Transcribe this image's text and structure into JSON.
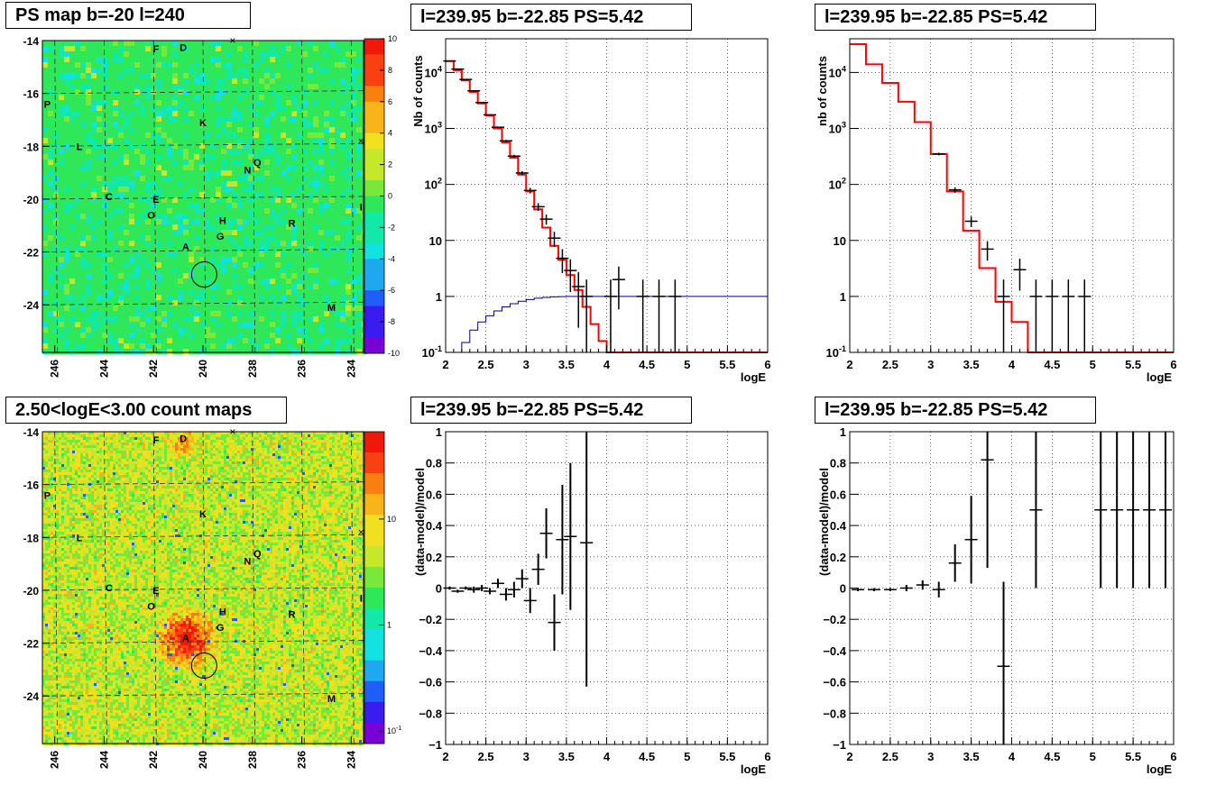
{
  "panel_titles": {
    "map_top": "PS map b=-20 l=240",
    "map_bottom": "2.50<logE<3.00 count maps",
    "spec_mid": "l=239.95 b=-22.85 PS=5.42",
    "spec_right": "l=239.95 b=-22.85 PS=5.42",
    "resid_mid": "l=239.95 b=-22.85 PS=5.42",
    "resid_right": "l=239.95 b=-22.85 PS=5.42"
  },
  "maps": {
    "x_ticks": [
      "246",
      "244",
      "242",
      "240",
      "238",
      "236",
      "234"
    ],
    "y_ticks": [
      "-14",
      "-16",
      "-18",
      "-20",
      "-22",
      "-24"
    ],
    "x_range": [
      246.5,
      233.5
    ],
    "y_range": [
      -14,
      -25.8
    ],
    "palette": [
      "#7a00d8",
      "#3a1cf0",
      "#1f5ef8",
      "#1ea8f0",
      "#12e2e2",
      "#12e8a8",
      "#2fe85a",
      "#7ae83a",
      "#c6e82a",
      "#f0e020",
      "#f8b418",
      "#f88010",
      "#f84010",
      "#f01808"
    ],
    "ps_colorbar_ticks": [
      "10",
      "8",
      "6",
      "4",
      "2",
      "0",
      "-2",
      "-4",
      "-6",
      "-8",
      "-10"
    ],
    "count_colorbar_ticks": [
      "10",
      "1",
      "10-1"
    ],
    "sources": [
      {
        "label": "F",
        "l": 241.9,
        "b": -14.3
      },
      {
        "label": "D",
        "l": 240.8,
        "b": -14.25
      },
      {
        "label": "P",
        "l": 246.3,
        "b": -16.4
      },
      {
        "label": "K",
        "l": 240.0,
        "b": -17.1
      },
      {
        "label": "L",
        "l": 245.0,
        "b": -18.0
      },
      {
        "label": "Q",
        "l": 237.8,
        "b": -18.6
      },
      {
        "label": "N",
        "l": 238.2,
        "b": -18.9
      },
      {
        "label": "C",
        "l": 243.8,
        "b": -19.9
      },
      {
        "label": "E",
        "l": 241.9,
        "b": -20.0
      },
      {
        "label": "O",
        "l": 242.1,
        "b": -20.6
      },
      {
        "label": "I",
        "l": 233.6,
        "b": -20.3
      },
      {
        "label": "H",
        "l": 239.2,
        "b": -20.8
      },
      {
        "label": "R",
        "l": 236.4,
        "b": -20.9
      },
      {
        "label": "G",
        "l": 239.3,
        "b": -21.4
      },
      {
        "label": "A",
        "l": 240.7,
        "b": -21.8
      },
      {
        "label": "M",
        "l": 234.8,
        "b": -24.1
      }
    ],
    "circle": {
      "l": 239.95,
      "b": -22.85
    },
    "crosses": [
      {
        "l": 238.8,
        "b": -14.0
      },
      {
        "l": 233.6,
        "b": -17.8
      }
    ]
  },
  "spectra": {
    "xlabel": "logE",
    "x_ticks": [
      "2",
      "2.5",
      "3",
      "3.5",
      "4",
      "4.5",
      "5",
      "5.5",
      "6"
    ],
    "y_tick_labels": [
      "10-1",
      "1",
      "10",
      "102",
      "103",
      "104"
    ]
  },
  "residuals": {
    "xlabel": "logE",
    "ylabel": "(data-model)/model",
    "x_ticks": [
      "2",
      "2.5",
      "3",
      "3.5",
      "4",
      "4.5",
      "5",
      "5.5",
      "6"
    ],
    "y_ticks": [
      "1",
      "0.8",
      "0.6",
      "0.4",
      "0.2",
      "0",
      "-0.2",
      "-0.4",
      "-0.6",
      "-0.8",
      "-1"
    ]
  },
  "chart_data": [
    {
      "type": "heatmap",
      "title": "PS map b=-20 l=240",
      "x_ticks": [
        246,
        244,
        242,
        240,
        238,
        236,
        234
      ],
      "y_ticks": [
        -14,
        -16,
        -18,
        -20,
        -22,
        -24
      ],
      "colorbar": [
        -10,
        10
      ]
    },
    {
      "type": "line",
      "title": "l=239.95 b=-22.85 PS=5.42",
      "xlabel": "logE",
      "ylabel": "Nb of counts",
      "xlim": [
        2,
        6
      ],
      "ylim": [
        0.1,
        40000
      ],
      "yscale": "log",
      "grid": true,
      "series": [
        {
          "style": "step",
          "color": "#ff0000",
          "x": [
            2.0,
            2.1,
            2.2,
            2.3,
            2.4,
            2.5,
            2.6,
            2.7,
            2.8,
            2.9,
            3.0,
            3.1,
            3.2,
            3.3,
            3.4,
            3.5,
            3.6,
            3.7,
            3.8,
            3.9,
            4.0,
            4.1,
            4.2,
            4.3,
            6.0
          ],
          "values": [
            16000,
            11000,
            7200,
            4500,
            2800,
            1700,
            1000,
            560,
            300,
            150,
            75,
            36,
            17,
            8,
            4.5,
            2.4,
            1.3,
            0.65,
            0.32,
            0.16,
            0.1,
            0.1,
            0.1,
            0.1,
            0.1
          ]
        },
        {
          "style": "step",
          "color": "#000080",
          "x": [
            2.0,
            2.1,
            2.2,
            2.3,
            2.4,
            2.5,
            2.6,
            2.7,
            2.8,
            2.9,
            3.0,
            3.1,
            3.2,
            3.3,
            3.4,
            3.5,
            3.6,
            6.0
          ],
          "values": [
            0.1,
            0.1,
            0.15,
            0.25,
            0.35,
            0.45,
            0.55,
            0.65,
            0.74,
            0.82,
            0.88,
            0.93,
            0.96,
            0.98,
            0.99,
            1,
            1,
            1
          ]
        },
        {
          "style": "errorbar",
          "color": "#000000",
          "x": [
            2.05,
            2.15,
            2.25,
            2.35,
            2.45,
            2.55,
            2.65,
            2.75,
            2.85,
            2.95,
            3.05,
            3.15,
            3.25,
            3.35,
            3.45,
            3.55,
            3.65,
            3.75,
            4.05,
            4.15,
            4.45,
            4.65,
            4.85
          ],
          "values": [
            16000,
            11500,
            7500,
            4700,
            2900,
            1750,
            1050,
            600,
            320,
            160,
            78,
            40,
            24,
            11,
            4.8,
            2.9,
            1.5,
            1.0,
            1,
            2,
            1,
            1,
            1
          ]
        }
      ]
    },
    {
      "type": "line",
      "title": "l=239.95 b=-22.85 PS=5.42",
      "xlabel": "logE",
      "ylabel": "nb of counts",
      "xlim": [
        2,
        6
      ],
      "ylim": [
        0.1,
        40000
      ],
      "yscale": "log",
      "grid": true,
      "series": [
        {
          "style": "step",
          "color": "#ff0000",
          "x": [
            2.0,
            2.2,
            2.4,
            2.6,
            2.8,
            3.0,
            3.2,
            3.4,
            3.6,
            3.8,
            4.0,
            4.2,
            6.0
          ],
          "values": [
            32000,
            14000,
            6500,
            3000,
            1300,
            350,
            75,
            15,
            3.2,
            0.8,
            0.35,
            0.1,
            0.1
          ]
        },
        {
          "style": "errorbar",
          "color": "#000000",
          "x": [
            3.1,
            3.3,
            3.5,
            3.7,
            3.9,
            4.1,
            4.3,
            4.5,
            4.7,
            4.9
          ],
          "values": [
            350,
            80,
            22,
            7,
            1,
            3,
            1,
            1,
            1,
            1
          ]
        }
      ]
    },
    {
      "type": "heatmap",
      "title": "2.50<logE<3.00 count maps",
      "x_ticks": [
        246,
        244,
        242,
        240,
        238,
        236,
        234
      ],
      "y_ticks": [
        -14,
        -16,
        -18,
        -20,
        -22,
        -24
      ],
      "colorbar_scale": "log"
    },
    {
      "type": "scatter",
      "title": "l=239.95 b=-22.85 PS=5.42",
      "xlabel": "logE",
      "ylabel": "(data-model)/model",
      "xlim": [
        2,
        6
      ],
      "ylim": [
        -1,
        1
      ],
      "grid": true,
      "x": [
        2.05,
        2.15,
        2.25,
        2.35,
        2.45,
        2.55,
        2.65,
        2.75,
        2.85,
        2.95,
        3.05,
        3.15,
        3.25,
        3.35,
        3.45,
        3.55,
        3.75
      ],
      "y": [
        0.0,
        -0.02,
        0.0,
        -0.01,
        0.0,
        -0.02,
        0.03,
        -0.04,
        -0.01,
        0.06,
        -0.08,
        0.12,
        0.35,
        -0.22,
        0.31,
        0.33,
        0.29
      ],
      "yerr": [
        0.01,
        0.01,
        0.01,
        0.02,
        0.02,
        0.02,
        0.03,
        0.04,
        0.05,
        0.06,
        0.08,
        0.1,
        0.16,
        0.18,
        0.35,
        0.47,
        0.92
      ]
    },
    {
      "type": "scatter",
      "title": "l=239.95 b=-22.85 PS=5.42",
      "xlabel": "logE",
      "ylabel": "(data-model)/model",
      "xlim": [
        2,
        6
      ],
      "ylim": [
        -1,
        1
      ],
      "grid": true,
      "x": [
        2.1,
        2.3,
        2.5,
        2.7,
        2.9,
        3.1,
        3.3,
        3.5,
        3.7,
        3.9,
        4.3,
        5.1,
        5.3,
        5.5,
        5.7,
        5.9
      ],
      "y": [
        -0.01,
        -0.01,
        -0.01,
        0.0,
        0.02,
        -0.01,
        0.16,
        0.31,
        0.82,
        -0.5,
        0.5,
        0.5,
        0.5,
        0.5,
        0.5,
        0.5
      ],
      "yerr": [
        0.01,
        0.01,
        0.01,
        0.02,
        0.03,
        0.05,
        0.12,
        0.28,
        0.69,
        0.54,
        0.5,
        0.5,
        0.5,
        0.5,
        0.5,
        0.5
      ]
    }
  ]
}
